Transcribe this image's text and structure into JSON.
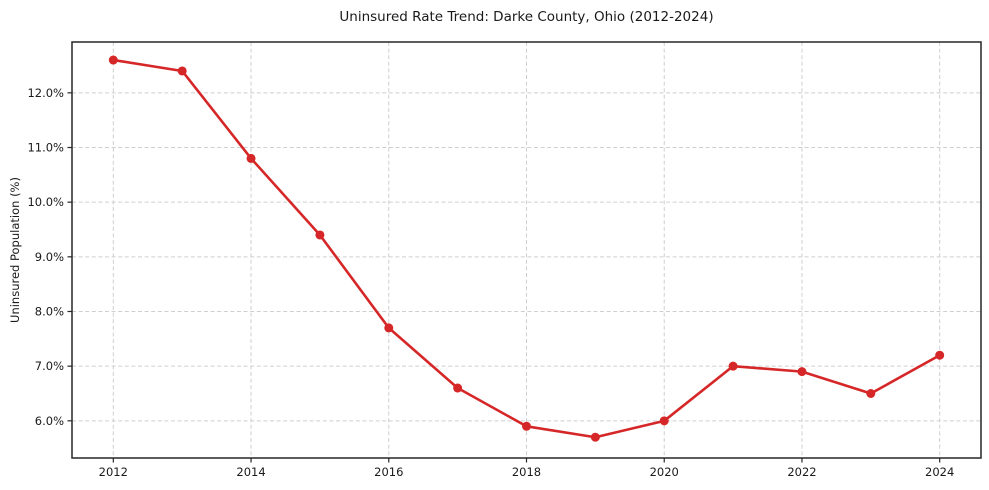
{
  "chart_data": {
    "type": "line",
    "title": "Uninsured Rate Trend: Darke County, Ohio (2012-2024)",
    "xlabel": "",
    "ylabel": "Uninsured Population (%)",
    "x": [
      2012,
      2013,
      2014,
      2015,
      2016,
      2017,
      2018,
      2019,
      2020,
      2021,
      2022,
      2023,
      2024
    ],
    "values": [
      12.6,
      12.4,
      10.8,
      9.4,
      7.7,
      6.6,
      5.9,
      5.7,
      6.0,
      7.0,
      6.9,
      6.5,
      7.2
    ],
    "x_ticks": {
      "values": [
        2012,
        2014,
        2016,
        2018,
        2020,
        2022,
        2024
      ],
      "labels": [
        "2012",
        "2014",
        "2016",
        "2018",
        "2020",
        "2022",
        "2024"
      ]
    },
    "y_ticks": {
      "values": [
        6,
        7,
        8,
        9,
        10,
        11,
        12
      ],
      "labels": [
        "6.0%",
        "7.0%",
        "8.0%",
        "9.0%",
        "10.0%",
        "11.0%",
        "12.0%"
      ]
    },
    "xlim": [
      2011.4,
      2024.6
    ],
    "ylim": [
      5.32,
      12.93
    ],
    "grid": true,
    "legend_position": "none",
    "marker": "circle",
    "colors": {
      "line": "#d62728",
      "grid": "#cfcfcf",
      "spine": "#262626",
      "text": "#1a1a1a",
      "background": "#ffffff"
    }
  }
}
